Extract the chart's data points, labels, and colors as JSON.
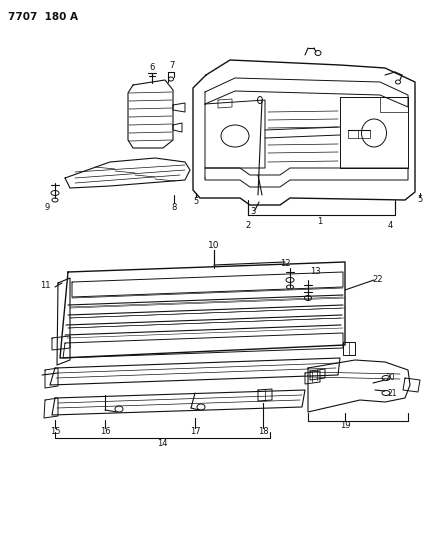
{
  "title": "7707  180 A",
  "background_color": "#ffffff",
  "line_color": "#111111",
  "figsize": [
    4.28,
    5.33
  ],
  "dpi": 100
}
